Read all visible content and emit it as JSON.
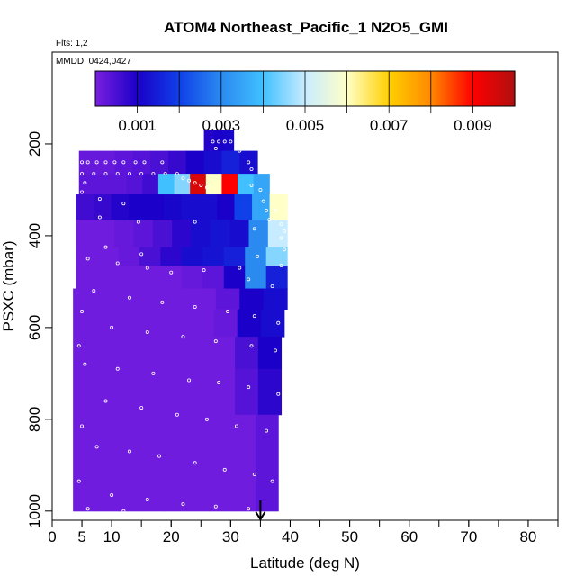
{
  "chart_data": {
    "type": "heatmap",
    "title": "ATOM4 Northeast_Pacific_1 N2O5_GMI",
    "flights_note": "Flts: 1,2",
    "date_note": "MMDD: 0424,0427",
    "xlabel": "Latitude (deg N)",
    "ylabel": "PSXC (mbar)",
    "xlim": [
      0,
      85
    ],
    "ylim": [
      1020,
      0
    ],
    "x_ticks": [
      0,
      5,
      10,
      20,
      30,
      40,
      50,
      60,
      70,
      80
    ],
    "y_ticks": [
      200,
      400,
      600,
      800,
      1000
    ],
    "grid": false,
    "colorbar": {
      "placement": "top inside plot",
      "min": 0.0,
      "max": 0.01,
      "tick_values": [
        0.001,
        0.003,
        0.005,
        0.007,
        0.009
      ],
      "tick_labels": [
        "0.001",
        "0.003",
        "0.005",
        "0.007",
        "0.009"
      ],
      "colors": [
        "#7a1fe0",
        "#1a00c8",
        "#1040e8",
        "#2a8af0",
        "#40c0ff",
        "#c8ecff",
        "#ffffc8",
        "#ffd000",
        "#ff8800",
        "#ff0000",
        "#b01010"
      ]
    },
    "curtain_layers": [
      {
        "p_top": 170,
        "p_bot": 215,
        "lat_min": 25.5,
        "lat_max": 30.5,
        "values": [
          0.0009,
          0.001,
          0.0011
        ]
      },
      {
        "p_top": 215,
        "p_bot": 265,
        "lat_min": 4.5,
        "lat_max": 34.5,
        "values": [
          0.0002,
          0.0002,
          0.0003,
          0.0004,
          0.0005,
          0.0007,
          0.001,
          0.0012,
          0.0015,
          0.0012
        ]
      },
      {
        "p_top": 265,
        "p_bot": 310,
        "lat_min": 4.5,
        "lat_max": 36.5,
        "values": [
          0.0003,
          0.0003,
          0.0003,
          0.0004,
          0.0006,
          0.004,
          0.0045,
          0.0095,
          0.006,
          0.009,
          0.004,
          0.0035
        ]
      },
      {
        "p_top": 310,
        "p_bot": 365,
        "lat_min": 4.0,
        "lat_max": 39.5,
        "values": [
          0.0006,
          0.0007,
          0.0009,
          0.001,
          0.001,
          0.0011,
          0.0012,
          0.0012,
          0.001,
          0.002,
          0.0035,
          0.006
        ]
      },
      {
        "p_top": 365,
        "p_bot": 425,
        "lat_min": 4.0,
        "lat_max": 39.5,
        "values": [
          0.0001,
          0.0001,
          0.0002,
          0.0003,
          0.0005,
          0.0008,
          0.0012,
          0.0013,
          0.0012,
          0.003,
          0.005
        ]
      },
      {
        "p_top": 425,
        "p_bot": 465,
        "lat_min": 4.0,
        "lat_max": 39.5,
        "values": [
          0.0001,
          0.0001,
          0.0002,
          0.0005,
          0.0008,
          0.0012,
          0.0013,
          0.0015,
          0.003,
          0.0045
        ]
      },
      {
        "p_top": 465,
        "p_bot": 515,
        "lat_min": 4.0,
        "lat_max": 39.5,
        "values": [
          0.0001,
          0.0001,
          0.0001,
          0.0001,
          0.0001,
          0.0002,
          0.0003,
          0.001,
          0.003,
          0.0015
        ]
      },
      {
        "p_top": 515,
        "p_bot": 560,
        "lat_min": 3.5,
        "lat_max": 39.5,
        "values": [
          0.0001,
          0.0001,
          0.0001,
          0.0001,
          0.0001,
          0.0001,
          0.0003,
          0.001,
          0.0012
        ]
      },
      {
        "p_top": 560,
        "p_bot": 620,
        "lat_min": 3.5,
        "lat_max": 39.0,
        "values": [
          0.0001,
          0.0001,
          0.0001,
          0.0001,
          0.0001,
          0.0001,
          0.0002,
          0.001,
          0.0012
        ]
      },
      {
        "p_top": 620,
        "p_bot": 690,
        "lat_min": 3.5,
        "lat_max": 38.5,
        "values": [
          0.0001,
          0.0001,
          0.0001,
          0.0001,
          0.0001,
          0.0001,
          0.0001,
          0.0005,
          0.001
        ]
      },
      {
        "p_top": 690,
        "p_bot": 790,
        "lat_min": 3.5,
        "lat_max": 38.5,
        "values": [
          0.0001,
          0.0001,
          0.0001,
          0.0001,
          0.0001,
          0.0001,
          0.0001,
          0.0004,
          0.0008
        ]
      },
      {
        "p_top": 790,
        "p_bot": 1000,
        "lat_min": 3.5,
        "lat_max": 38.0,
        "values": [
          0.0001,
          0.0001,
          0.0001,
          0.0001,
          0.0001,
          0.0001,
          0.0001,
          0.0001,
          0.0003
        ]
      }
    ],
    "sample_points": [
      [
        5.0,
        240
      ],
      [
        6.0,
        240
      ],
      [
        7.5,
        240
      ],
      [
        9.0,
        240
      ],
      [
        10.5,
        240
      ],
      [
        12.0,
        240
      ],
      [
        14.0,
        240
      ],
      [
        15.5,
        240
      ],
      [
        18.5,
        240
      ],
      [
        27.0,
        195
      ],
      [
        28.0,
        195
      ],
      [
        29.0,
        195
      ],
      [
        30.0,
        195
      ],
      [
        31.0,
        195
      ],
      [
        27.5,
        210
      ],
      [
        31.5,
        215
      ],
      [
        33.0,
        240
      ],
      [
        33.5,
        255
      ],
      [
        5.0,
        265
      ],
      [
        7.0,
        265
      ],
      [
        9.0,
        265
      ],
      [
        11.0,
        265
      ],
      [
        13.0,
        265
      ],
      [
        15.0,
        265
      ],
      [
        17.0,
        265
      ],
      [
        19.0,
        265
      ],
      [
        21.0,
        265
      ],
      [
        5.5,
        285
      ],
      [
        22.0,
        275
      ],
      [
        23.0,
        280
      ],
      [
        24.0,
        285
      ],
      [
        25.0,
        290
      ],
      [
        26.0,
        295
      ],
      [
        33.5,
        290
      ],
      [
        35.0,
        300
      ],
      [
        5.0,
        305
      ],
      [
        8.0,
        320
      ],
      [
        12.0,
        330
      ],
      [
        35.5,
        325
      ],
      [
        36.0,
        345
      ],
      [
        36.5,
        365
      ],
      [
        37.5,
        345
      ],
      [
        38.5,
        375
      ],
      [
        39.0,
        390
      ],
      [
        8.0,
        360
      ],
      [
        14.5,
        370
      ],
      [
        24.0,
        370
      ],
      [
        34.0,
        385
      ],
      [
        38.5,
        405
      ],
      [
        39.0,
        430
      ],
      [
        9.0,
        425
      ],
      [
        15.0,
        440
      ],
      [
        6.0,
        450
      ],
      [
        11.0,
        460
      ],
      [
        16.0,
        470
      ],
      [
        20.0,
        480
      ],
      [
        25.5,
        475
      ],
      [
        31.5,
        470
      ],
      [
        34.5,
        445
      ],
      [
        38.5,
        465
      ],
      [
        33.0,
        495
      ],
      [
        37.0,
        510
      ],
      [
        7.0,
        520
      ],
      [
        13.0,
        535
      ],
      [
        18.5,
        545
      ],
      [
        24.0,
        555
      ],
      [
        29.5,
        565
      ],
      [
        34.0,
        575
      ],
      [
        38.0,
        590
      ],
      [
        5.0,
        565
      ],
      [
        10.0,
        600
      ],
      [
        16.0,
        610
      ],
      [
        22.0,
        620
      ],
      [
        27.5,
        630
      ],
      [
        33.5,
        640
      ],
      [
        37.5,
        650
      ],
      [
        4.5,
        640
      ],
      [
        5.5,
        680
      ],
      [
        11.0,
        690
      ],
      [
        17.0,
        700
      ],
      [
        23.0,
        715
      ],
      [
        28.0,
        720
      ],
      [
        33.0,
        730
      ],
      [
        38.0,
        745
      ],
      [
        9.0,
        760
      ],
      [
        15.0,
        775
      ],
      [
        21.0,
        790
      ],
      [
        26.0,
        800
      ],
      [
        31.0,
        815
      ],
      [
        36.0,
        825
      ],
      [
        5.0,
        815
      ],
      [
        7.5,
        860
      ],
      [
        13.0,
        870
      ],
      [
        18.0,
        880
      ],
      [
        24.0,
        895
      ],
      [
        29.0,
        910
      ],
      [
        34.0,
        920
      ],
      [
        37.0,
        935
      ],
      [
        4.5,
        935
      ],
      [
        10.0,
        965
      ],
      [
        16.0,
        975
      ],
      [
        22.0,
        985
      ],
      [
        27.5,
        990
      ],
      [
        33.0,
        995
      ],
      [
        6.0,
        995
      ],
      [
        12.0,
        1000
      ]
    ],
    "marker_arrow_lat": 35.0
  }
}
